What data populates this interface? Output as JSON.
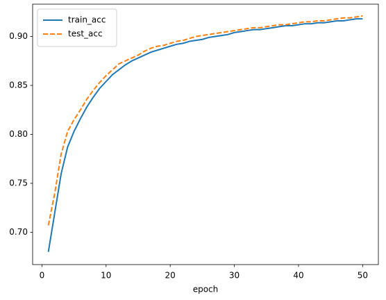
{
  "chart_data": {
    "type": "line",
    "xlabel": "epoch",
    "x": [
      1,
      2,
      3,
      4,
      5,
      6,
      7,
      8,
      9,
      10,
      11,
      12,
      13,
      14,
      15,
      16,
      17,
      18,
      19,
      20,
      21,
      22,
      23,
      24,
      25,
      26,
      27,
      28,
      29,
      30,
      31,
      32,
      33,
      34,
      35,
      36,
      37,
      38,
      39,
      40,
      41,
      42,
      43,
      44,
      45,
      46,
      47,
      48,
      49,
      50
    ],
    "series": [
      {
        "name": "train_acc",
        "color": "#1f77b4",
        "linestyle": "solid",
        "values": [
          0.68,
          0.72,
          0.76,
          0.787,
          0.803,
          0.816,
          0.828,
          0.838,
          0.847,
          0.854,
          0.861,
          0.866,
          0.871,
          0.875,
          0.878,
          0.881,
          0.884,
          0.886,
          0.888,
          0.89,
          0.892,
          0.893,
          0.895,
          0.896,
          0.897,
          0.899,
          0.9,
          0.901,
          0.902,
          0.904,
          0.905,
          0.906,
          0.907,
          0.907,
          0.908,
          0.909,
          0.91,
          0.911,
          0.911,
          0.912,
          0.913,
          0.913,
          0.914,
          0.914,
          0.915,
          0.916,
          0.916,
          0.917,
          0.918,
          0.918
        ]
      },
      {
        "name": "test_acc",
        "color": "#ff7f0e",
        "linestyle": "dashed",
        "values": [
          0.707,
          0.74,
          0.78,
          0.803,
          0.815,
          0.825,
          0.836,
          0.845,
          0.853,
          0.86,
          0.866,
          0.872,
          0.875,
          0.878,
          0.881,
          0.885,
          0.888,
          0.89,
          0.891,
          0.893,
          0.895,
          0.896,
          0.898,
          0.9,
          0.901,
          0.902,
          0.903,
          0.904,
          0.905,
          0.906,
          0.907,
          0.908,
          0.909,
          0.909,
          0.91,
          0.911,
          0.912,
          0.912,
          0.913,
          0.914,
          0.915,
          0.915,
          0.916,
          0.916,
          0.917,
          0.918,
          0.919,
          0.919,
          0.92,
          0.921
        ]
      }
    ],
    "xlim": [
      -1.45,
      52.45
    ],
    "xticks": [
      0,
      10,
      20,
      30,
      40,
      50
    ],
    "ylim": [
      0.667,
      0.933
    ],
    "yticks": [
      {
        "value": 0.7,
        "label": "0.70"
      },
      {
        "value": 0.75,
        "label": "0.75"
      },
      {
        "value": 0.8,
        "label": "0.80"
      },
      {
        "value": 0.85,
        "label": "0.85"
      },
      {
        "value": 0.9,
        "label": "0.90"
      }
    ],
    "legend": "upper left",
    "grid": false
  }
}
